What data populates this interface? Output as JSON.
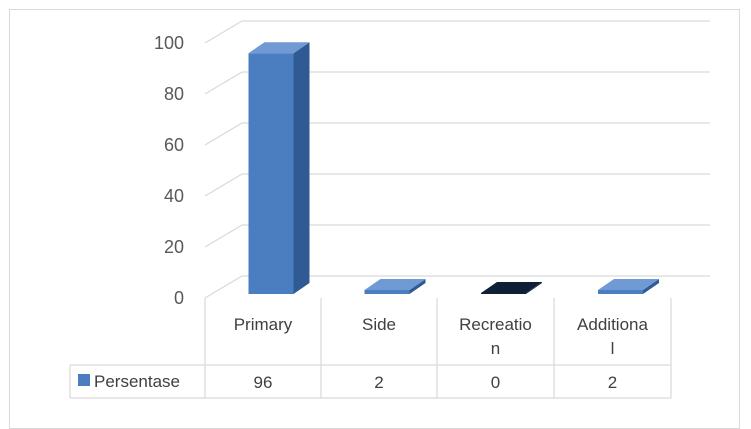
{
  "chart_data": {
    "type": "bar",
    "style": "3d-column-with-data-table",
    "categories": [
      [
        "Primary"
      ],
      [
        "Side"
      ],
      [
        "Recreatio",
        "n"
      ],
      [
        "Additiona",
        "l"
      ]
    ],
    "series": [
      {
        "name": "Persentase",
        "values": [
          96,
          2,
          0,
          2
        ],
        "color": "#4a7ec1"
      }
    ],
    "yticks": [
      "0",
      "20",
      "40",
      "60",
      "80",
      "100"
    ],
    "ylim": [
      0,
      100
    ],
    "grid": true,
    "legend": "data-table-left",
    "table_values": [
      "96",
      "2",
      "0",
      "2"
    ]
  },
  "colors": {
    "bar_front": "#4a7ec1",
    "bar_side": "#2f5a94",
    "bar_top": "#6f9ad4",
    "zero_bar": "#0f1f36",
    "grid": "#d9d9d9"
  }
}
